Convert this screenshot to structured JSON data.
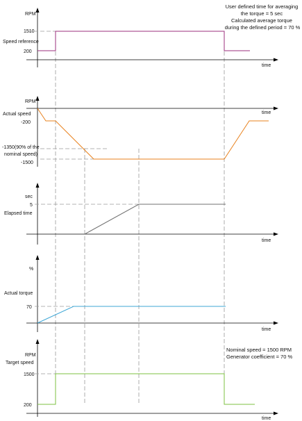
{
  "colors": {
    "speed_reference": "#9b2f7c",
    "actual_speed": "#e8821e",
    "elapsed_time": "#707070",
    "actual_torque": "#3fa7d6",
    "target_speed": "#7dc242",
    "axis": "#000000",
    "guide": "#9a9a9a"
  },
  "notes": {
    "top_right": [
      "User defined time for averaging",
      "the torque = 5 sec",
      "Calculated average torque",
      "during the defined period = 70 %"
    ],
    "bottom_right": [
      "Nominal speed = 1500 RPM",
      "Generator coefficient = 70 %"
    ]
  },
  "panels": {
    "speed_reference": {
      "unit": "RPM",
      "label": "Speed reference",
      "ticks": [
        "1510",
        "200"
      ],
      "time_label": "time"
    },
    "actual_speed": {
      "unit": "RPM",
      "label": "Actual speed",
      "ticks": [
        "-200",
        "-1350(90% of the",
        "nominal speed)",
        "-1500"
      ],
      "time_label": "time"
    },
    "elapsed_time": {
      "unit": "sec",
      "label": "Elapsed time",
      "ticks": [
        "5"
      ],
      "time_label": "time"
    },
    "actual_torque": {
      "unit": "%",
      "label": "Actual torque",
      "ticks": [
        "70"
      ],
      "time_label": "time"
    },
    "target_speed": {
      "unit": "RPM",
      "label": "Target speed",
      "ticks": [
        "1500",
        "200"
      ],
      "time_label": "time"
    }
  }
}
